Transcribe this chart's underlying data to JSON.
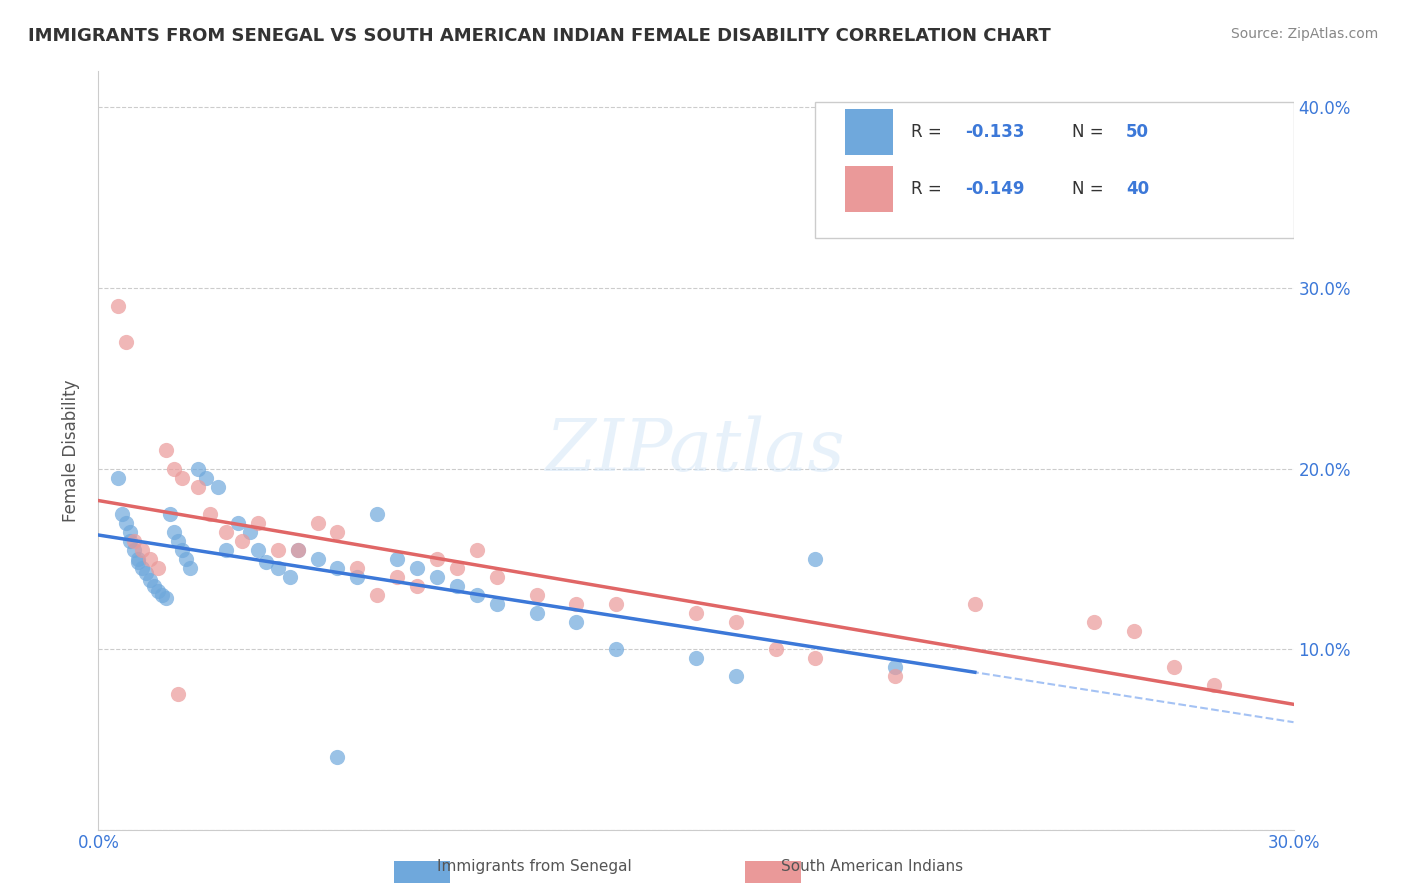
{
  "title": "IMMIGRANTS FROM SENEGAL VS SOUTH AMERICAN INDIAN FEMALE DISABILITY CORRELATION CHART",
  "source": "Source: ZipAtlas.com",
  "xlabel_bottom": "",
  "ylabel": "Female Disability",
  "xlim": [
    0.0,
    0.3
  ],
  "ylim": [
    0.0,
    0.42
  ],
  "x_ticks": [
    0.0,
    0.05,
    0.1,
    0.15,
    0.2,
    0.25,
    0.3
  ],
  "x_tick_labels": [
    "0.0%",
    "",
    "",
    "",
    "",
    "",
    "30.0%"
  ],
  "y_ticks": [
    0.0,
    0.1,
    0.2,
    0.3,
    0.4
  ],
  "y_tick_labels_right": [
    "",
    "10.0%",
    "20.0%",
    "30.0%",
    "40.0%"
  ],
  "watermark": "ZIPatlas",
  "legend_r1": "R = -0.133",
  "legend_n1": "N = 50",
  "legend_r2": "R = -0.149",
  "legend_n2": "N = 40",
  "legend_label1": "Immigrants from Senegal",
  "legend_label2": "South American Indians",
  "blue_color": "#6fa8dc",
  "pink_color": "#ea9999",
  "blue_line_color": "#3c78d8",
  "pink_line_color": "#e06666",
  "dashed_line_color": "#a4c2f4",
  "blue_scatter_x": [
    0.005,
    0.006,
    0.007,
    0.008,
    0.008,
    0.009,
    0.01,
    0.01,
    0.011,
    0.012,
    0.013,
    0.014,
    0.015,
    0.016,
    0.017,
    0.018,
    0.019,
    0.02,
    0.021,
    0.022,
    0.023,
    0.025,
    0.027,
    0.03,
    0.032,
    0.035,
    0.038,
    0.04,
    0.042,
    0.045,
    0.048,
    0.05,
    0.055,
    0.06,
    0.065,
    0.07,
    0.075,
    0.08,
    0.085,
    0.09,
    0.095,
    0.1,
    0.11,
    0.12,
    0.13,
    0.15,
    0.16,
    0.18,
    0.2,
    0.06
  ],
  "blue_scatter_y": [
    0.195,
    0.175,
    0.17,
    0.165,
    0.16,
    0.155,
    0.15,
    0.148,
    0.145,
    0.142,
    0.138,
    0.135,
    0.132,
    0.13,
    0.128,
    0.175,
    0.165,
    0.16,
    0.155,
    0.15,
    0.145,
    0.2,
    0.195,
    0.19,
    0.155,
    0.17,
    0.165,
    0.155,
    0.148,
    0.145,
    0.14,
    0.155,
    0.15,
    0.145,
    0.14,
    0.175,
    0.15,
    0.145,
    0.14,
    0.135,
    0.13,
    0.125,
    0.12,
    0.115,
    0.1,
    0.095,
    0.085,
    0.15,
    0.09,
    0.04
  ],
  "pink_scatter_x": [
    0.005,
    0.007,
    0.009,
    0.011,
    0.013,
    0.015,
    0.017,
    0.019,
    0.021,
    0.025,
    0.028,
    0.032,
    0.036,
    0.04,
    0.045,
    0.05,
    0.055,
    0.06,
    0.065,
    0.07,
    0.075,
    0.08,
    0.085,
    0.09,
    0.095,
    0.1,
    0.11,
    0.12,
    0.13,
    0.15,
    0.16,
    0.17,
    0.18,
    0.2,
    0.22,
    0.25,
    0.26,
    0.27,
    0.28,
    0.02
  ],
  "pink_scatter_y": [
    0.29,
    0.27,
    0.16,
    0.155,
    0.15,
    0.145,
    0.21,
    0.2,
    0.195,
    0.19,
    0.175,
    0.165,
    0.16,
    0.17,
    0.155,
    0.155,
    0.17,
    0.165,
    0.145,
    0.13,
    0.14,
    0.135,
    0.15,
    0.145,
    0.155,
    0.14,
    0.13,
    0.125,
    0.125,
    0.12,
    0.115,
    0.1,
    0.095,
    0.085,
    0.125,
    0.115,
    0.11,
    0.09,
    0.08,
    0.075
  ]
}
